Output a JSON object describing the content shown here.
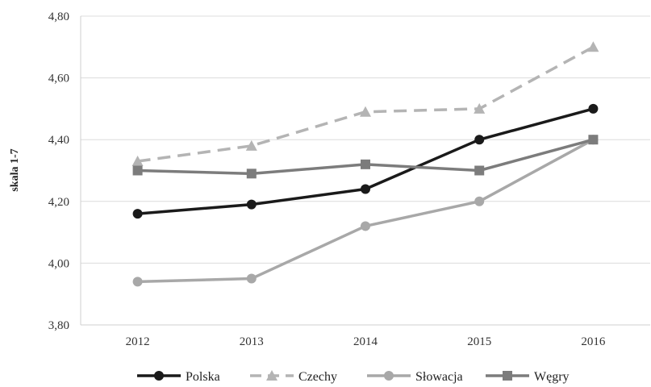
{
  "chart_data": {
    "type": "line",
    "title": "",
    "xlabel": "",
    "ylabel": "skala 1-7",
    "categories": [
      "2012",
      "2013",
      "2014",
      "2015",
      "2016"
    ],
    "y_ticks": [
      "3,80",
      "4,00",
      "4,20",
      "4,40",
      "4,60",
      "4,80"
    ],
    "ylim": [
      3.8,
      4.8
    ],
    "y_step": 0.2,
    "grid": true,
    "legend_position": "bottom",
    "series": [
      {
        "name": "Polska",
        "values": [
          4.16,
          4.19,
          4.24,
          4.4,
          4.5
        ],
        "color": "#1a1a1a",
        "dash": "solid",
        "marker": "circle"
      },
      {
        "name": "Czechy",
        "values": [
          4.33,
          4.38,
          4.49,
          4.5,
          4.7
        ],
        "color": "#b4b4b4",
        "dash": "dashed",
        "marker": "triangle"
      },
      {
        "name": "Słowacja",
        "values": [
          3.94,
          3.95,
          4.12,
          4.2,
          4.4
        ],
        "color": "#a8a8a8",
        "dash": "solid",
        "marker": "circle"
      },
      {
        "name": "Węgry",
        "values": [
          4.3,
          4.29,
          4.32,
          4.3,
          4.4
        ],
        "color": "#7c7c7c",
        "dash": "solid",
        "marker": "square"
      }
    ]
  }
}
